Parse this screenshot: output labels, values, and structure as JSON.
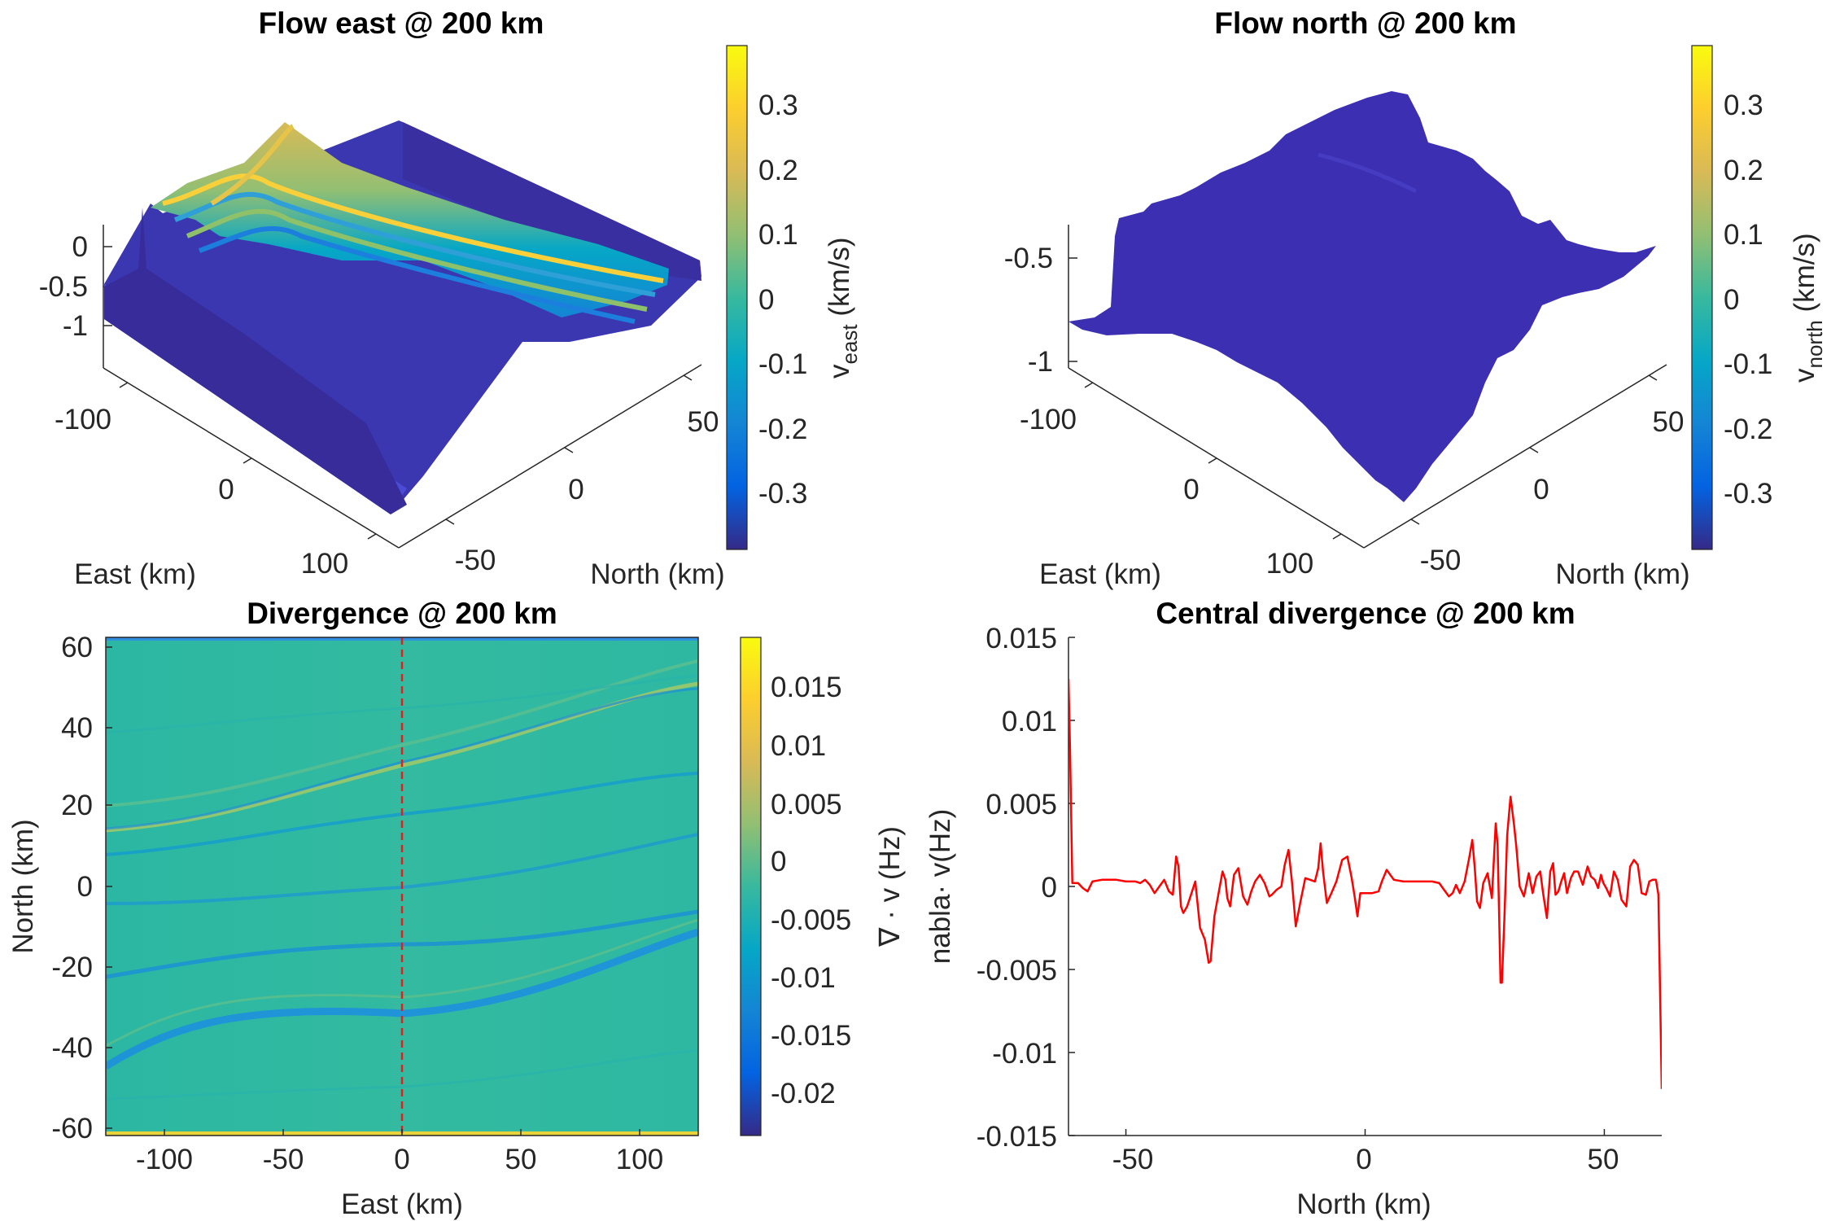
{
  "chart_data": [
    {
      "type": "surface",
      "title": "Flow east @ 200 km",
      "xlabel": "East (km)",
      "ylabel": "North (km)",
      "x_ticks": [
        "-100",
        "0",
        "100"
      ],
      "y_ticks": [
        "-50",
        "0",
        "50"
      ],
      "z_ticks": [
        "0",
        "-0.5",
        "-1"
      ],
      "colorbar": {
        "label_main": "v",
        "label_sub": "east",
        "label_unit": " (km/s)",
        "ticks": [
          "0.3",
          "0.2",
          "0.1",
          "0",
          "-0.1",
          "-0.2",
          "-0.3"
        ],
        "range": [
          -0.38,
          0.38
        ]
      }
    },
    {
      "type": "surface",
      "title": "Flow north @ 200 km",
      "xlabel": "East (km)",
      "ylabel": "North (km)",
      "x_ticks": [
        "-100",
        "0",
        "100"
      ],
      "y_ticks": [
        "-50",
        "0",
        "50"
      ],
      "z_ticks": [
        "-0.5",
        "-1"
      ],
      "colorbar": {
        "label_main": "v",
        "label_sub": "north",
        "label_unit": " (km/s)",
        "ticks": [
          "0.3",
          "0.2",
          "0.1",
          "0",
          "-0.1",
          "-0.2",
          "-0.3"
        ],
        "range": [
          -0.38,
          0.38
        ]
      }
    },
    {
      "type": "heatmap",
      "title": "Divergence @ 200 km",
      "xlabel": "East (km)",
      "ylabel": "North (km)",
      "xlim": [
        -125,
        125
      ],
      "ylim": [
        -62,
        62
      ],
      "x_ticks": [
        "-100",
        "-50",
        "0",
        "50",
        "100"
      ],
      "y_ticks": [
        "60",
        "40",
        "20",
        "0",
        "-20",
        "-40",
        "-60"
      ],
      "marker_line_x": 0,
      "colorbar": {
        "label": "∇ · v (Hz)",
        "ticks": [
          "0.015",
          "0.01",
          "0.005",
          "0",
          "-0.005",
          "-0.01",
          "-0.015",
          "-0.02"
        ],
        "range": [
          -0.0235,
          0.019
        ]
      }
    },
    {
      "type": "line",
      "title": "Central divergence @ 200 km",
      "xlabel": "North (km)",
      "ylabel": "nabla· v(Hz)",
      "xlim": [
        -62,
        62
      ],
      "ylim": [
        -0.015,
        0.015
      ],
      "x_ticks": [
        "-50",
        "0",
        "50"
      ],
      "y_ticks": [
        "0.015",
        "0.01",
        "0.005",
        "0",
        "-0.005",
        "-0.01",
        "-0.015"
      ],
      "color": "#ff0000",
      "x": [
        -62,
        -61.7,
        -61.2,
        -60,
        -59,
        -58,
        -57,
        -55,
        -52,
        -50,
        -48,
        -47,
        -46,
        -45,
        -44,
        -43,
        -42,
        -41,
        -40.2,
        -39.5,
        -39,
        -38.5,
        -38,
        -37.2,
        -36.5,
        -35.5,
        -34.5,
        -33.5,
        -32.7,
        -32.3,
        -31.5,
        -30.5,
        -29.8,
        -29.2,
        -28.8,
        -28.2,
        -27.4,
        -26.5,
        -25.5,
        -24.6,
        -23.8,
        -23,
        -22,
        -21,
        -20,
        -19.5,
        -18.5,
        -17.5,
        -16.8,
        -16,
        -15.3,
        -14.5,
        -13.5,
        -12.5,
        -11.5,
        -10.5,
        -9.8,
        -9.3,
        -8.8,
        -8,
        -7.2,
        -6,
        -4.8,
        -3.7,
        -2.8,
        -2.2,
        -1.6,
        -1,
        0,
        1.5,
        2.8,
        3.5,
        4.5,
        6,
        8,
        10,
        12,
        14,
        15.5,
        16.5,
        17.5,
        18.3,
        19,
        19.8,
        20.8,
        21.8,
        22.4,
        22.9,
        23.4,
        24,
        24.7,
        25.6,
        26.5,
        27.3,
        27.7,
        28,
        28.3,
        28.6,
        29.1,
        29.7,
        30.4,
        31.1,
        31.6,
        32.3,
        33.2,
        34.2,
        35,
        35.8,
        36.6,
        37.2,
        38,
        38.7,
        39.3,
        39.8,
        40.4,
        41,
        41.6,
        42.2,
        43,
        43.7,
        44.5,
        45.5,
        46.5,
        47.2,
        48,
        48.7,
        49.3,
        49.8,
        50.4,
        51.2,
        52,
        52.8,
        53.6,
        54.6,
        55.4,
        56.2,
        57,
        57.8,
        58.7,
        59.4,
        60.1,
        60.8,
        61.3,
        62
      ],
      "y": [
        0.0125,
        0.0085,
        0.0002,
        0.0002,
        -0.0001,
        -0.0003,
        0.0003,
        0.0004,
        0.0004,
        0.0003,
        0.0003,
        0.0002,
        0.0004,
        0.0001,
        -0.0004,
        0,
        0.0004,
        -0.0003,
        -0.0005,
        0.0018,
        0.0012,
        -0.0012,
        -0.0016,
        -0.0012,
        -0.0006,
        0.0003,
        -0.0025,
        -0.0032,
        -0.0046,
        -0.0045,
        -0.0018,
        -0.0002,
        0.0009,
        0.0004,
        -0.0007,
        -0.0012,
        0.0007,
        0.0011,
        -0.0006,
        -0.0011,
        -0.0003,
        0.0003,
        0.0007,
        0.0002,
        -0.0006,
        -0.0005,
        -0.0002,
        0,
        0.0013,
        0.0022,
        0.0003,
        -0.0024,
        -0.0009,
        0.0005,
        0.0004,
        0.0003,
        0.0011,
        0.0026,
        0.0009,
        -0.001,
        -0.0005,
        0.0003,
        0.0016,
        0.0018,
        0.0005,
        -0.0006,
        -0.0018,
        -0.0004,
        -0.0004,
        -0.0004,
        -0.0003,
        0.0003,
        0.001,
        0.0004,
        0.0003,
        0.0003,
        0.0003,
        0.0003,
        0.0002,
        -0.0002,
        -0.0006,
        -0.0004,
        0.0001,
        -0.0004,
        0.0003,
        0.0018,
        0.0028,
        0.0012,
        -0.0009,
        -0.0013,
        0.0002,
        0.0008,
        -0.0007,
        0.0038,
        0.0025,
        -0.0015,
        -0.0058,
        -0.0058,
        -0.002,
        0.0031,
        0.0054,
        0.0038,
        0.0024,
        0,
        -0.0006,
        0.0008,
        -0.0004,
        0.0006,
        0.0009,
        -0.0004,
        -0.0019,
        0.0009,
        0.0014,
        -0.0005,
        -0.0003,
        0.0003,
        0.0008,
        -0.0004,
        0.0005,
        0.0009,
        0.0009,
        0.0001,
        0.0012,
        0.0006,
        0.0004,
        -0.0001,
        0.0007,
        0.0002,
        -0.0001,
        -0.0006,
        0.0009,
        0.0004,
        -0.0008,
        -0.0012,
        0.0012,
        0.0016,
        0.0013,
        -0.0004,
        -0.0005,
        0.0003,
        0.0004,
        0.0004,
        -0.0005,
        -0.0122
      ]
    }
  ]
}
